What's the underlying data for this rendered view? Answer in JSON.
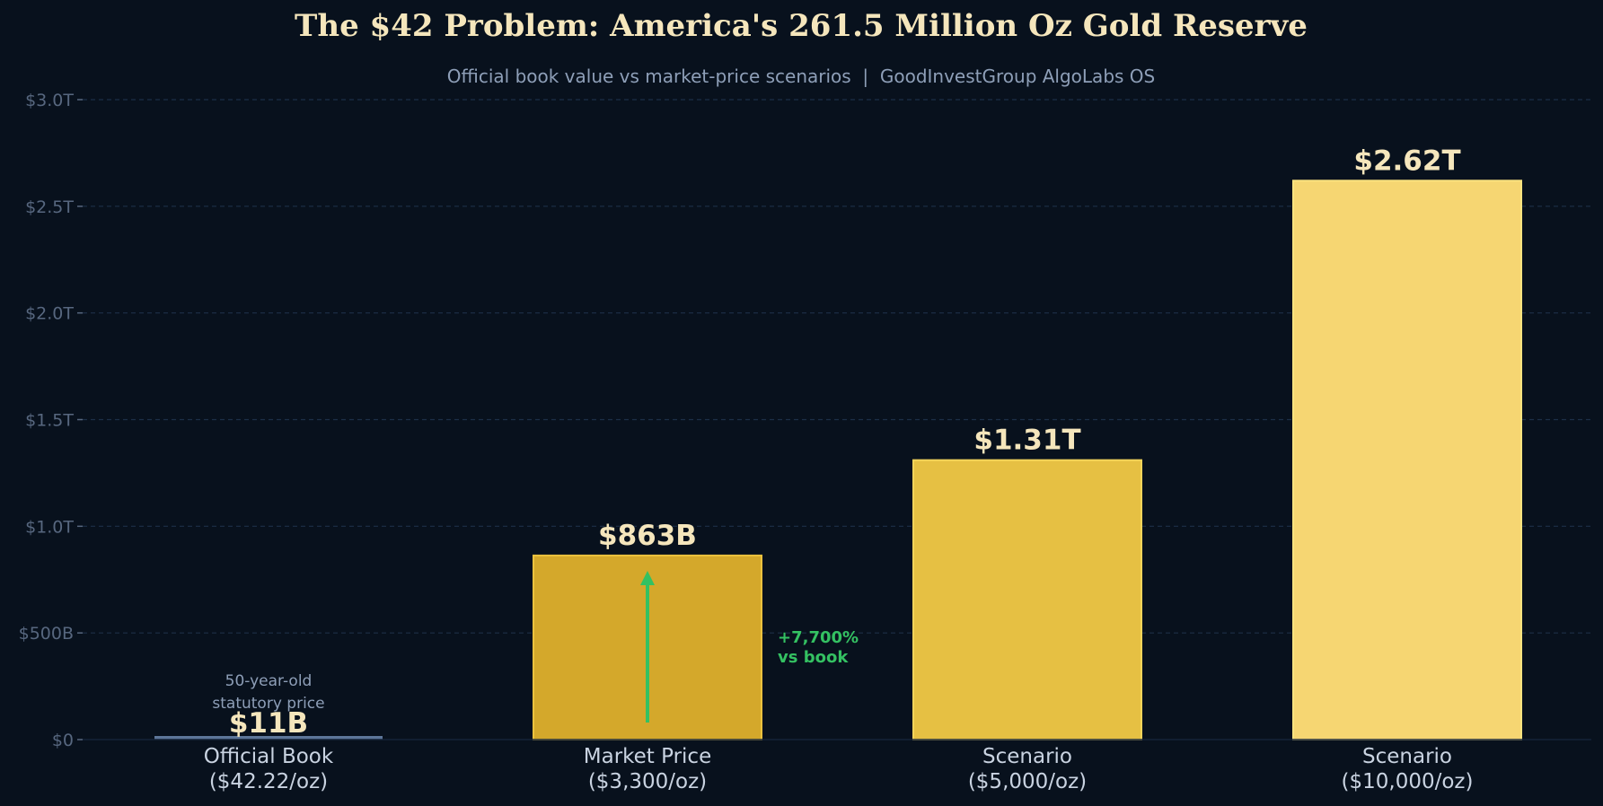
{
  "chart_data": {
    "type": "bar",
    "title": "The $42 Problem: America's 261.5 Million Oz Gold Reserve",
    "subtitle": "Official book value vs market-price scenarios  |  GoodInvestGroup AlgoLabs OS",
    "xlabel": "",
    "ylabel": "",
    "categories": [
      [
        "Official Book",
        "($42.22/oz)"
      ],
      [
        "Market Price",
        "($3,300/oz)"
      ],
      [
        "Scenario",
        "($5,000/oz)"
      ],
      [
        "Scenario",
        "($10,000/oz)"
      ]
    ],
    "values": [
      11,
      863,
      1310,
      2620
    ],
    "value_unit": "billion USD",
    "data_labels": [
      "$11B",
      "$863B",
      "$1.31T",
      "$2.62T"
    ],
    "ylim": [
      0,
      3000
    ],
    "yticks": [
      0,
      500,
      1000,
      1500,
      2000,
      2500,
      3000
    ],
    "ytick_labels": [
      "$0",
      "$500B",
      "$1.0T",
      "$1.5T",
      "$2.0T",
      "$2.5T",
      "$3.0T"
    ],
    "grid": true,
    "bar_colors": [
      "#5d7699",
      "#d4a82b",
      "#e6c043",
      "#f6d672"
    ],
    "bar_edge_colors": [
      "#6f88ab",
      "#ecc23e",
      "#f4d45a",
      "#fbe37f"
    ],
    "annotations": {
      "book_note": [
        "50-year-old",
        "statutory price"
      ],
      "increase_label": [
        "+7,700%",
        "vs book"
      ]
    },
    "colors": {
      "background": "#08111d",
      "title": "#f5e6bc",
      "subtitle": "#8e9fb8",
      "ytick": "#57677f",
      "xtick": "#c9d3e1",
      "data_label": "#f5e6bc",
      "note": "#8e9fb8",
      "grid": "#1c2f47",
      "accent_green": "#34c162"
    }
  }
}
